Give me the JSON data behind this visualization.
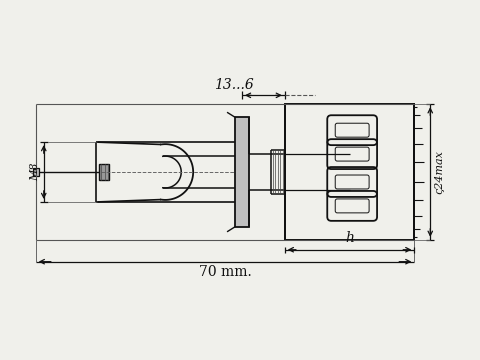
{
  "bg_color": "#f0f0eb",
  "line_color": "#111111",
  "dim_13_6": "13...6",
  "dim_70": "70 mm.",
  "dim_h": "h",
  "dim_m8": "M8",
  "dim_phi24": "ς24max",
  "figsize": [
    4.8,
    3.6
  ],
  "dpi": 100
}
